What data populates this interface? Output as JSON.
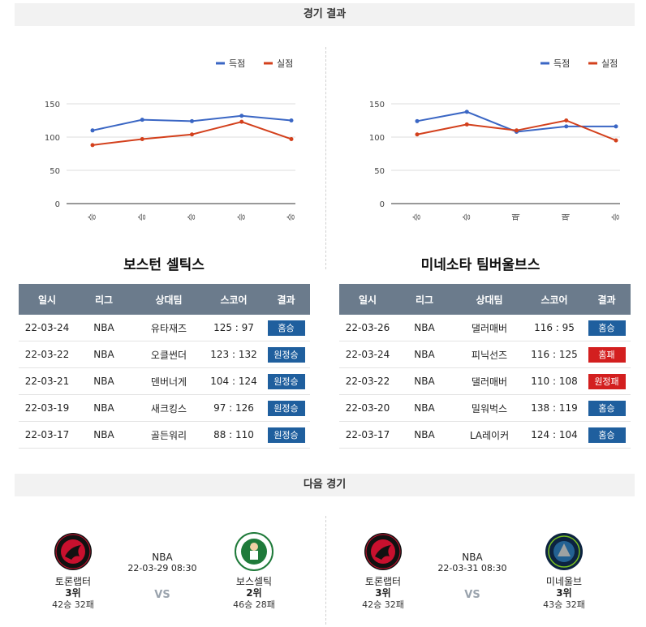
{
  "results_header": "경기 결과",
  "next_header": "다음 경기",
  "legend": {
    "scored": "득점",
    "conceded": "실점"
  },
  "colors": {
    "scored": "#3a66c4",
    "conceded": "#d3401c",
    "win_badge": "#1f5f9e",
    "loss_badge": "#d31f1f",
    "table_header": "#6b7b8c"
  },
  "chart_data": [
    {
      "type": "line",
      "title": "",
      "categories": [
        "승",
        "승",
        "승",
        "승",
        "승"
      ],
      "series": [
        {
          "name": "득점",
          "values": [
            110,
            126,
            124,
            132,
            125
          ]
        },
        {
          "name": "실점",
          "values": [
            88,
            97,
            104,
            123,
            97
          ]
        }
      ],
      "ylim": [
        0,
        150
      ],
      "yticks": [
        0,
        50,
        100,
        150
      ],
      "grid": true,
      "legend": "top-right"
    },
    {
      "type": "line",
      "title": "",
      "categories": [
        "승",
        "승",
        "패",
        "패",
        "승"
      ],
      "series": [
        {
          "name": "득점",
          "values": [
            124,
            138,
            108,
            116,
            116
          ]
        },
        {
          "name": "실점",
          "values": [
            104,
            119,
            110,
            125,
            95
          ]
        }
      ],
      "ylim": [
        0,
        150
      ],
      "yticks": [
        0,
        50,
        100,
        150
      ],
      "grid": true,
      "legend": "top-right"
    }
  ],
  "teams": [
    {
      "name": "보스턴 셀틱스",
      "columns": [
        "일시",
        "리그",
        "상대팀",
        "스코어",
        "결과"
      ],
      "rows": [
        {
          "date": "22-03-24",
          "league": "NBA",
          "opponent": "유타재즈",
          "score": "125 : 97",
          "result": "홈승",
          "win": true
        },
        {
          "date": "22-03-22",
          "league": "NBA",
          "opponent": "오클썬더",
          "score": "123 : 132",
          "result": "원정승",
          "win": true
        },
        {
          "date": "22-03-21",
          "league": "NBA",
          "opponent": "덴버너게",
          "score": "104 : 124",
          "result": "원정승",
          "win": true
        },
        {
          "date": "22-03-19",
          "league": "NBA",
          "opponent": "새크킹스",
          "score": "97 : 126",
          "result": "원정승",
          "win": true
        },
        {
          "date": "22-03-17",
          "league": "NBA",
          "opponent": "골든워리",
          "score": "88 : 110",
          "result": "원정승",
          "win": true
        }
      ]
    },
    {
      "name": "미네소타 팀버울브스",
      "columns": [
        "일시",
        "리그",
        "상대팀",
        "스코어",
        "결과"
      ],
      "rows": [
        {
          "date": "22-03-26",
          "league": "NBA",
          "opponent": "댈러매버",
          "score": "116 : 95",
          "result": "홈승",
          "win": true
        },
        {
          "date": "22-03-24",
          "league": "NBA",
          "opponent": "피닉선즈",
          "score": "116 : 125",
          "result": "홈패",
          "win": false
        },
        {
          "date": "22-03-22",
          "league": "NBA",
          "opponent": "댈러매버",
          "score": "110 : 108",
          "result": "원정패",
          "win": false
        },
        {
          "date": "22-03-20",
          "league": "NBA",
          "opponent": "밀워벅스",
          "score": "138 : 119",
          "result": "홈승",
          "win": true
        },
        {
          "date": "22-03-17",
          "league": "NBA",
          "opponent": "LA레이커",
          "score": "124 : 104",
          "result": "홈승",
          "win": true
        }
      ]
    }
  ],
  "next_games": [
    {
      "league": "NBA",
      "datetime": "22-03-29 08:30",
      "vs": "VS",
      "home": {
        "name": "토론랩터",
        "rank": "3위",
        "record": "42승 32패",
        "logo": "raptors-logo"
      },
      "away": {
        "name": "보스셀틱",
        "rank": "2위",
        "record": "46승 28패",
        "logo": "celtics-logo"
      }
    },
    {
      "league": "NBA",
      "datetime": "22-03-31 08:30",
      "vs": "VS",
      "home": {
        "name": "토론랩터",
        "rank": "3위",
        "record": "42승 32패",
        "logo": "raptors-logo"
      },
      "away": {
        "name": "미네울브",
        "rank": "3위",
        "record": "43승 32패",
        "logo": "timberwolves-logo"
      }
    }
  ]
}
